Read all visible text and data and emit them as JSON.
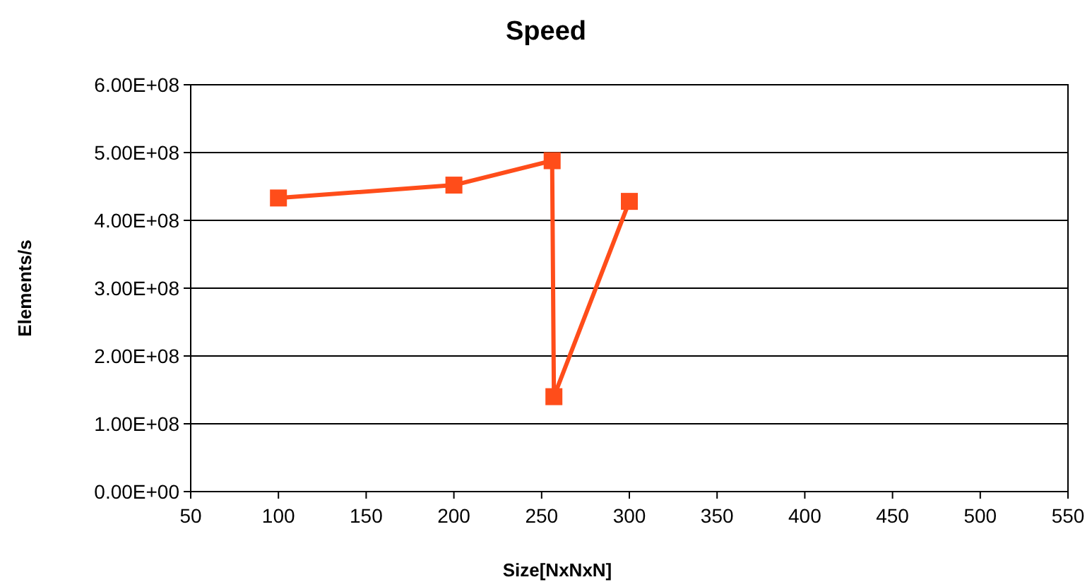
{
  "chart_data": {
    "type": "line",
    "title": "Speed",
    "xlabel": "Size[NxNxN]",
    "ylabel": "Elements/s",
    "x": [
      100,
      200,
      256,
      257,
      300
    ],
    "series": [
      {
        "color": "#ff4d1a",
        "values": [
          433000000,
          452000000,
          488000000,
          140000000,
          428000000
        ]
      }
    ],
    "xlim": [
      50,
      550
    ],
    "xticks": [
      50,
      100,
      150,
      200,
      250,
      300,
      350,
      400,
      450,
      500,
      550
    ],
    "ylim": [
      0,
      600000000
    ],
    "yticks": [
      {
        "value": 0,
        "label": "0.00E+00"
      },
      {
        "value": 100000000,
        "label": "1.00E+08"
      },
      {
        "value": 200000000,
        "label": "2.00E+08"
      },
      {
        "value": 300000000,
        "label": "3.00E+08"
      },
      {
        "value": 400000000,
        "label": "4.00E+08"
      },
      {
        "value": 500000000,
        "label": "5.00E+08"
      },
      {
        "value": 600000000,
        "label": "6.00E+08"
      }
    ],
    "grid": "y",
    "marker": "square",
    "line_style": "solid"
  }
}
